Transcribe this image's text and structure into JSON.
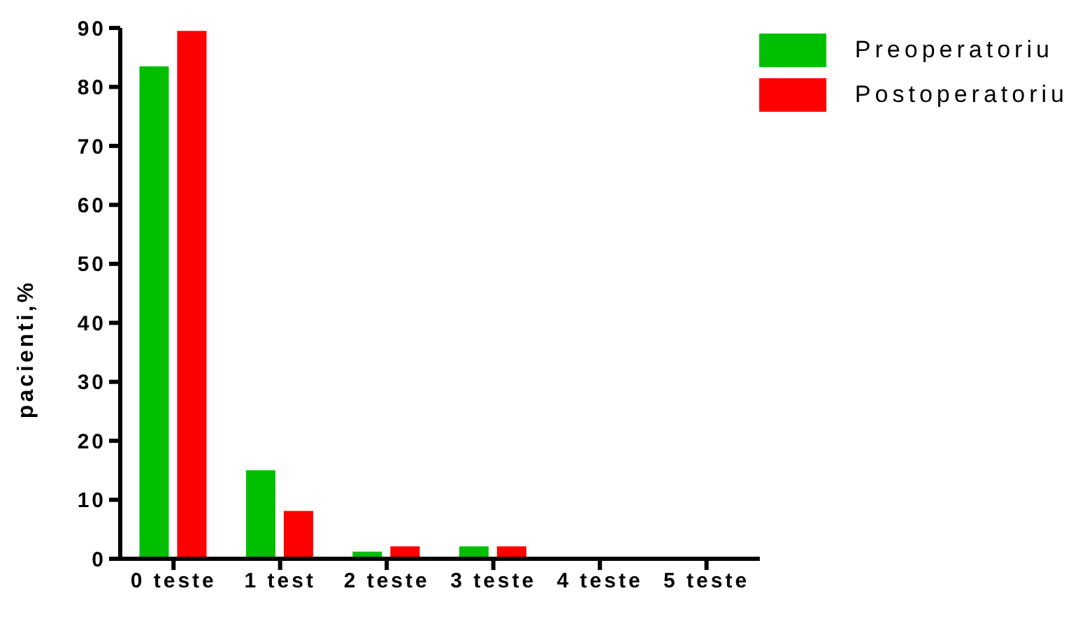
{
  "chart_data": {
    "type": "bar",
    "ylabel": "pacienti,%",
    "categories": [
      "0 teste",
      "1 test",
      "2 teste",
      "3 teste",
      "4 teste",
      "5 teste"
    ],
    "series": [
      {
        "name": "Preoperatoriu",
        "color": "#00bf00",
        "values": [
          83.5,
          15,
          1.2,
          2.1,
          0,
          0
        ]
      },
      {
        "name": "Postoperatoriu",
        "color": "#ff0000",
        "values": [
          89.5,
          8.1,
          2.1,
          2.1,
          0,
          0
        ]
      }
    ],
    "ylim": [
      0,
      90
    ],
    "yticks": [
      0,
      10,
      20,
      30,
      40,
      50,
      60,
      70,
      80,
      90
    ],
    "grid": false,
    "legend": "top right"
  }
}
